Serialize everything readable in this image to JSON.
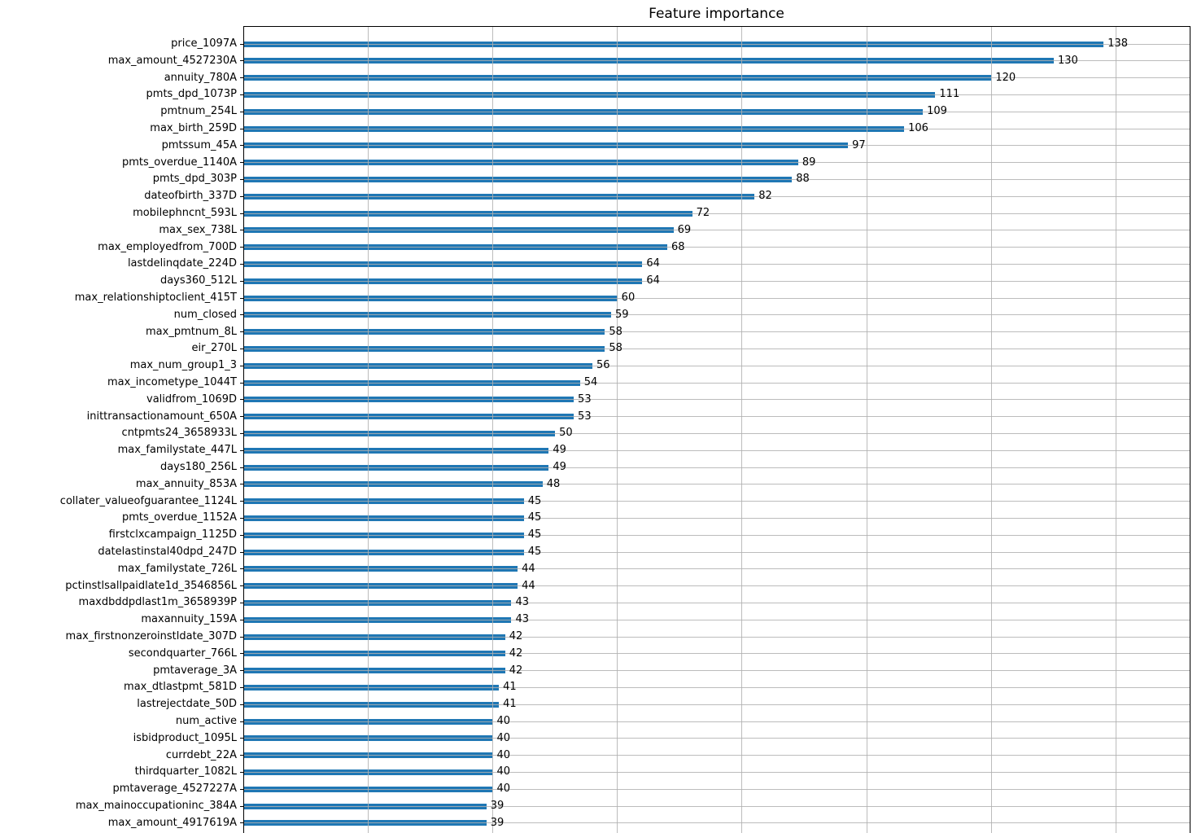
{
  "chart_data": {
    "type": "bar",
    "orientation": "horizontal",
    "title": "Feature importance",
    "xlabel": "",
    "ylabel": "",
    "grid": true,
    "xlim": [
      0,
      151.8
    ],
    "x_gridlines": [
      0,
      20,
      40,
      60,
      80,
      100,
      120,
      140
    ],
    "bar_color": "#1f77b4",
    "grid_color": "#b0b0b0",
    "value_labels_shown": true,
    "categories": [
      "price_1097A",
      "max_amount_4527230A",
      "annuity_780A",
      "pmts_dpd_1073P",
      "pmtnum_254L",
      "max_birth_259D",
      "pmtssum_45A",
      "pmts_overdue_1140A",
      "pmts_dpd_303P",
      "dateofbirth_337D",
      "mobilephncnt_593L",
      "max_sex_738L",
      "max_employedfrom_700D",
      "lastdelinqdate_224D",
      "days360_512L",
      "max_relationshiptoclient_415T",
      "num_closed",
      "max_pmtnum_8L",
      "eir_270L",
      "max_num_group1_3",
      "max_incometype_1044T",
      "validfrom_1069D",
      "inittransactionamount_650A",
      "cntpmts24_3658933L",
      "max_familystate_447L",
      "days180_256L",
      "max_annuity_853A",
      "collater_valueofguarantee_1124L",
      "pmts_overdue_1152A",
      "firstclxcampaign_1125D",
      "datelastinstal40dpd_247D",
      "max_familystate_726L",
      "pctinstlsallpaidlate1d_3546856L",
      "maxdbddpdlast1m_3658939P",
      "maxannuity_159A",
      "max_firstnonzeroinstldate_307D",
      "secondquarter_766L",
      "pmtaverage_3A",
      "max_dtlastpmt_581D",
      "lastrejectdate_50D",
      "num_active",
      "isbidproduct_1095L",
      "currdebt_22A",
      "thirdquarter_1082L",
      "pmtaverage_4527227A",
      "max_mainoccupationinc_384A",
      "max_amount_4917619A"
    ],
    "values": [
      138,
      130,
      120,
      111,
      109,
      106,
      97,
      89,
      88,
      82,
      72,
      69,
      68,
      64,
      64,
      60,
      59,
      58,
      58,
      56,
      54,
      53,
      53,
      50,
      49,
      49,
      48,
      45,
      45,
      45,
      45,
      44,
      44,
      43,
      43,
      42,
      42,
      42,
      41,
      41,
      40,
      40,
      40,
      40,
      40,
      39,
      39
    ]
  }
}
